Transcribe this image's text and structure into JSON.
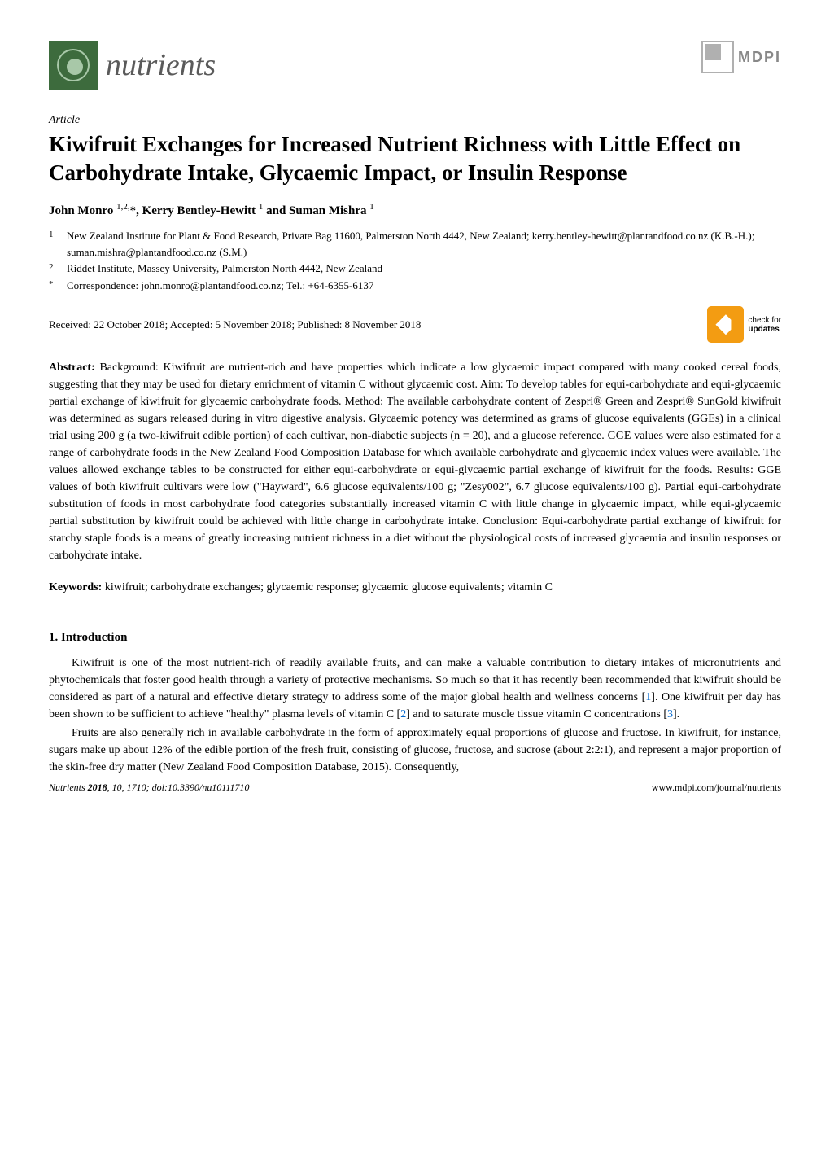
{
  "journal": {
    "name": "nutrients",
    "publisher": "MDPI"
  },
  "article": {
    "type": "Article",
    "title": "Kiwifruit Exchanges for Increased Nutrient Richness with Little Effect on Carbohydrate Intake, Glycaemic Impact, or Insulin Response",
    "authors": "John Monro ¹,²,*, Kerry Bentley-Hewitt ¹ and Suman Mishra ¹",
    "affiliations": [
      {
        "num": "1",
        "text": "New Zealand Institute for Plant & Food Research, Private Bag 11600, Palmerston North 4442, New Zealand; kerry.bentley-hewitt@plantandfood.co.nz (K.B.-H.); suman.mishra@plantandfood.co.nz (S.M.)"
      },
      {
        "num": "2",
        "text": "Riddet Institute, Massey University, Palmerston North 4442, New Zealand"
      },
      {
        "num": "*",
        "text": "Correspondence: john.monro@plantandfood.co.nz; Tel.: +64-6355-6137"
      }
    ],
    "dates": "Received: 22 October 2018; Accepted: 5 November 2018; Published: 8 November 2018",
    "check_updates": {
      "line1": "check for",
      "line2": "updates"
    },
    "abstract_label": "Abstract:",
    "abstract": " Background: Kiwifruit are nutrient-rich and have properties which indicate a low glycaemic impact compared with many cooked cereal foods, suggesting that they may be used for dietary enrichment of vitamin C without glycaemic cost. Aim: To develop tables for equi-carbohydrate and equi-glycaemic partial exchange of kiwifruit for glycaemic carbohydrate foods. Method: The available carbohydrate content of Zespri® Green and Zespri® SunGold kiwifruit was determined as sugars released during in vitro digestive analysis. Glycaemic potency was determined as grams of glucose equivalents (GGEs) in a clinical trial using 200 g (a two-kiwifruit edible portion) of each cultivar, non-diabetic subjects (n = 20), and a glucose reference. GGE values were also estimated for a range of carbohydrate foods in the New Zealand Food Composition Database for which available carbohydrate and glycaemic index values were available. The values allowed exchange tables to be constructed for either equi-carbohydrate or equi-glycaemic partial exchange of kiwifruit for the foods. Results: GGE values of both kiwifruit cultivars were low (\"Hayward\", 6.6 glucose equivalents/100 g; \"Zesy002\", 6.7 glucose equivalents/100 g). Partial equi-carbohydrate substitution of foods in most carbohydrate food categories substantially increased vitamin C with little change in glycaemic impact, while equi-glycaemic partial substitution by kiwifruit could be achieved with little change in carbohydrate intake. Conclusion: Equi-carbohydrate partial exchange of kiwifruit for starchy staple foods is a means of greatly increasing nutrient richness in a diet without the physiological costs of increased glycaemia and insulin responses or carbohydrate intake.",
    "keywords_label": "Keywords:",
    "keywords": " kiwifruit; carbohydrate exchanges; glycaemic response; glycaemic glucose equivalents; vitamin C"
  },
  "sections": {
    "intro_heading": "1. Introduction",
    "intro_p1": "Kiwifruit is one of the most nutrient-rich of readily available fruits, and can make a valuable contribution to dietary intakes of micronutrients and phytochemicals that foster good health through a variety of protective mechanisms. So much so that it has recently been recommended that kiwifruit should be considered as part of a natural and effective dietary strategy to address some of the major global health and wellness concerns [1]. One kiwifruit per day has been shown to be sufficient to achieve \"healthy\" plasma levels of vitamin C [2] and to saturate muscle tissue vitamin C concentrations [3].",
    "intro_p2": "Fruits are also generally rich in available carbohydrate in the form of approximately equal proportions of glucose and fructose. In kiwifruit, for instance, sugars make up about 12% of the edible portion of the fresh fruit, consisting of glucose, fructose, and sucrose (about 2:2:1), and represent a major proportion of the skin-free dry matter (New Zealand Food Composition Database, 2015). Consequently,"
  },
  "footer": {
    "left": "Nutrients 2018, 10, 1710; doi:10.3390/nu10111710",
    "right": "www.mdpi.com/journal/nutrients"
  },
  "colors": {
    "text": "#000000",
    "background": "#ffffff",
    "link": "#0066cc",
    "journal_green": "#3d6b3d",
    "journal_light_green": "#a8c8a8",
    "gray": "#5a5a5a",
    "mdpi_gray": "#888888",
    "updates_orange": "#f39c12"
  }
}
